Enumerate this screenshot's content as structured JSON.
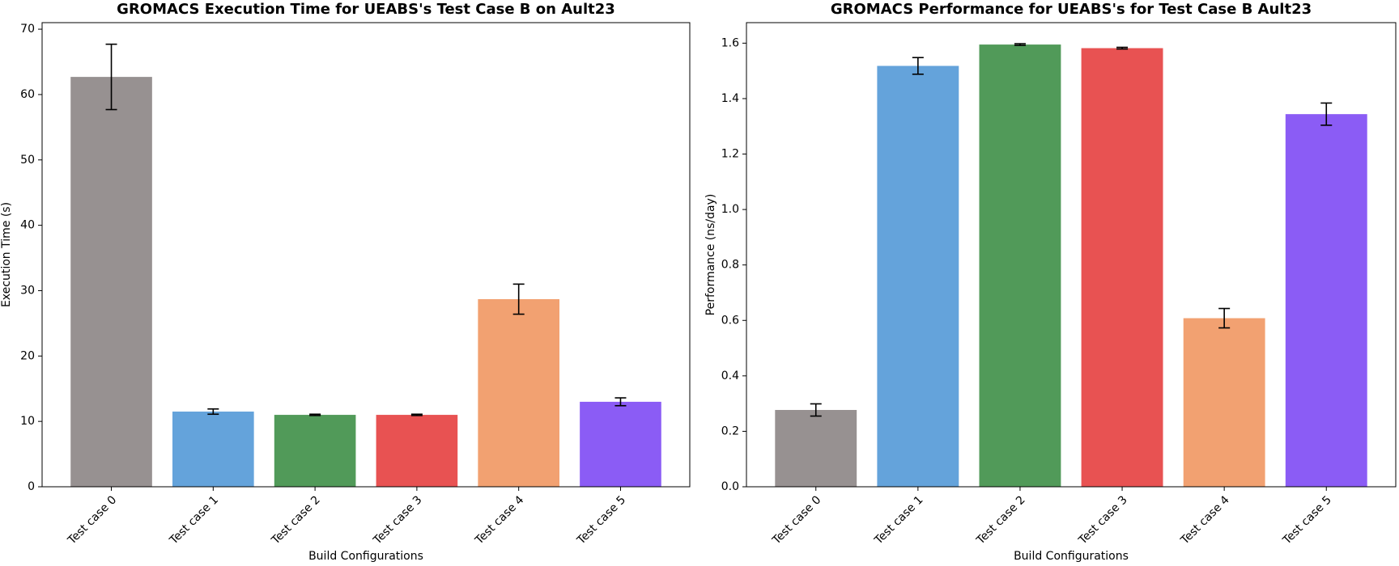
{
  "chart_data": [
    {
      "type": "bar",
      "title": "GROMACS Execution Time for UEABS's Test Case B on Ault23",
      "xlabel": "Build Configurations",
      "ylabel": "Execution Time (s)",
      "categories": [
        "Test case 0",
        "Test case 1",
        "Test case 2",
        "Test case 3",
        "Test case 4",
        "Test case 5"
      ],
      "values": [
        62.7,
        11.5,
        11.0,
        11.0,
        28.7,
        13.0
      ],
      "errors": [
        5.0,
        0.4,
        0.1,
        0.1,
        2.3,
        0.6
      ],
      "colors": [
        "#979191",
        "#64a3db",
        "#519a59",
        "#e85252",
        "#f2a171",
        "#8b5cf5"
      ],
      "ylim": [
        0,
        71
      ],
      "yticks": [
        0,
        10,
        20,
        30,
        40,
        50,
        60,
        70
      ]
    },
    {
      "type": "bar",
      "title": "GROMACS Performance for UEABS's for Test Case B Ault23",
      "xlabel": "Build Configurations",
      "ylabel": "Performance (ns/day)",
      "categories": [
        "Test case 0",
        "Test case 1",
        "Test case 2",
        "Test case 3",
        "Test case 4",
        "Test case 5"
      ],
      "values": [
        0.277,
        1.518,
        1.595,
        1.582,
        0.608,
        1.344
      ],
      "errors": [
        0.022,
        0.03,
        0.003,
        0.003,
        0.035,
        0.04
      ],
      "colors": [
        "#979191",
        "#64a3db",
        "#519a59",
        "#e85252",
        "#f2a171",
        "#8b5cf5"
      ],
      "ylim": [
        0,
        1.674
      ],
      "yticks": [
        {
          "value": 0,
          "label": "0.0"
        },
        0.2,
        0.4,
        0.6,
        0.8,
        {
          "value": 1,
          "label": "1.0"
        },
        1.2,
        1.4,
        1.6
      ]
    }
  ]
}
